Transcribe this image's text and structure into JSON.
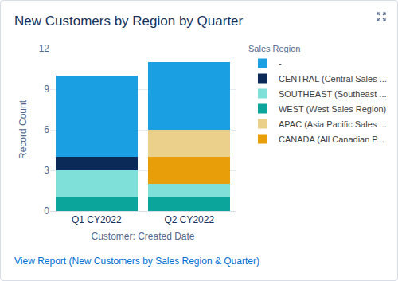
{
  "chart_data": {
    "type": "bar",
    "stacked": true,
    "title": "New Customers by Region by Quarter",
    "x_label": "Customer: Created Date",
    "y_label": "Record Count",
    "legend_title": "Sales Region",
    "link": "View Report (New Customers by Sales Region & Quarter)",
    "categories": [
      "Q1 CY2022",
      "Q2 CY2022"
    ],
    "series": [
      {
        "name": "-",
        "color": "#1a9fe2",
        "values": [
          6,
          5
        ]
      },
      {
        "name": "CENTRAL (Central Sales ...",
        "color": "#0b2a57",
        "values": [
          1,
          0
        ]
      },
      {
        "name": "SOUTHEAST (Southeast ...",
        "color": "#7fdfd9",
        "values": [
          2,
          1
        ]
      },
      {
        "name": "WEST (West Sales Region)",
        "color": "#0ba59c",
        "values": [
          1,
          1
        ]
      },
      {
        "name": "APAC (Asia Pacific Sales ...",
        "color": "#ead08a",
        "values": [
          0,
          2
        ]
      },
      {
        "name": "CANADA (All Canadian P...",
        "color": "#e89e08",
        "values": [
          0,
          2
        ]
      }
    ],
    "ylim": [
      0,
      12
    ],
    "yticks": [
      0,
      3,
      6,
      9,
      12
    ],
    "grid": true,
    "legend": "right"
  }
}
